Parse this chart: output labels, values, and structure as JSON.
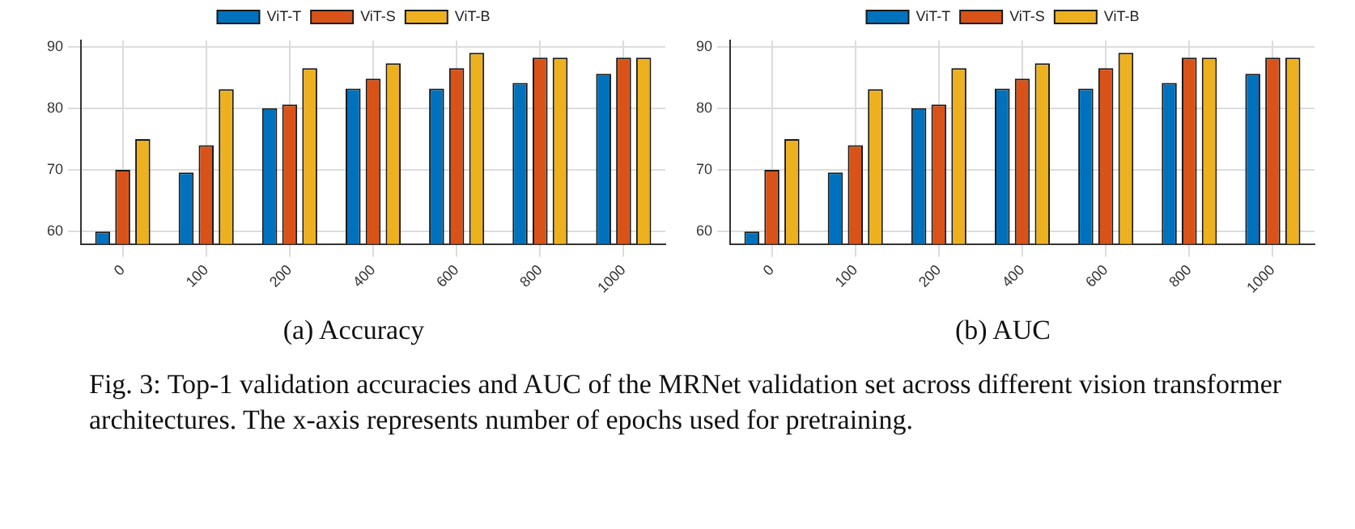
{
  "chart_data": [
    {
      "type": "bar",
      "title": "(a) Accuracy",
      "categories": [
        "0",
        "100",
        "200",
        "400",
        "600",
        "800",
        "1000"
      ],
      "series": [
        {
          "name": "ViT-T",
          "color": "#0072bd",
          "values": [
            60,
            69.6,
            80,
            83.2,
            83.2,
            84.1,
            85.6
          ]
        },
        {
          "name": "ViT-S",
          "color": "#d95319",
          "values": [
            70,
            74,
            80.6,
            84.8,
            86.5,
            88.2,
            88.2
          ]
        },
        {
          "name": "ViT-B",
          "color": "#edb120",
          "values": [
            75,
            83.1,
            86.5,
            87.3,
            89,
            88.2,
            88.2
          ]
        }
      ],
      "ylim": [
        58,
        91
      ],
      "yticks": [
        60,
        70,
        80,
        90
      ],
      "grid": true,
      "legend": "top",
      "annotations": [
        "Fig. 3: Top-1 validation accuracies and AUC of the MRNet validation set across different vision transformer architectures. The x-axis represents number of epochs used for pretraining."
      ]
    },
    {
      "type": "bar",
      "title": "(b) AUC",
      "categories": [
        "0",
        "100",
        "200",
        "400",
        "600",
        "800",
        "1000"
      ],
      "series": [
        {
          "name": "ViT-T",
          "color": "#0072bd",
          "values": [
            60,
            69.6,
            80,
            83.2,
            83.2,
            84.1,
            85.6
          ]
        },
        {
          "name": "ViT-S",
          "color": "#d95319",
          "values": [
            70,
            74,
            80.6,
            84.8,
            86.5,
            88.2,
            88.2
          ]
        },
        {
          "name": "ViT-B",
          "color": "#edb120",
          "values": [
            75,
            83.1,
            86.5,
            87.3,
            89,
            88.2,
            88.2
          ]
        }
      ],
      "ylim": [
        58,
        91
      ],
      "yticks": [
        60,
        70,
        80,
        90
      ],
      "grid": true,
      "legend": "top"
    }
  ]
}
